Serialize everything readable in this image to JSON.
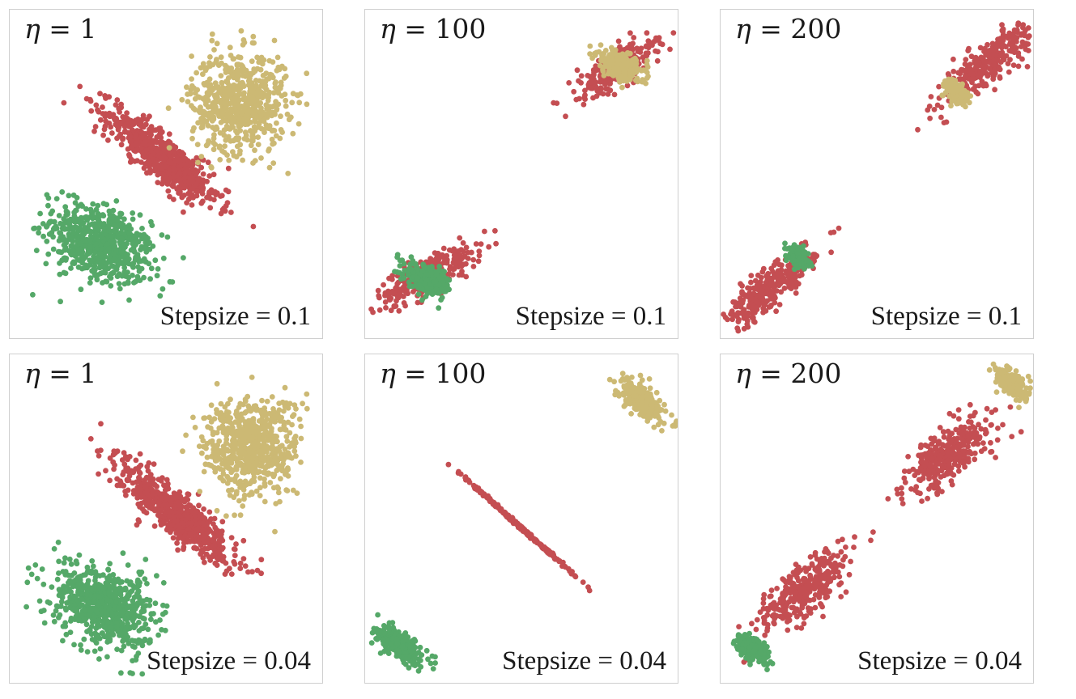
{
  "colors": {
    "green": "#55a868",
    "red": "#c44e52",
    "gold": "#ccb974",
    "border": "#cfcfcf"
  },
  "chart_data": [
    {
      "type": "scatter",
      "panel": "top-left",
      "eta_symbol": "η",
      "eta_equals": " = ",
      "eta_value": "1",
      "stepsize_prefix": "Stepsize = ",
      "stepsize_value": "0.1",
      "xlim": [
        0,
        1
      ],
      "ylim": [
        0,
        1
      ],
      "series": [
        {
          "name": "green",
          "color": "green",
          "center": [
            0.29,
            0.29
          ],
          "spread": [
            0.085,
            0.055
          ],
          "rotation": -25,
          "count": 650
        },
        {
          "name": "red",
          "color": "red",
          "center": [
            0.49,
            0.55
          ],
          "spread": [
            0.11,
            0.03
          ],
          "rotation": -38,
          "count": 650
        },
        {
          "name": "gold",
          "color": "gold",
          "center": [
            0.73,
            0.72
          ],
          "spread": [
            0.075,
            0.075
          ],
          "rotation": 0,
          "count": 650
        }
      ]
    },
    {
      "type": "scatter",
      "panel": "top-middle",
      "eta_symbol": "η",
      "eta_equals": " = ",
      "eta_value": "100",
      "stepsize_prefix": "Stepsize = ",
      "stepsize_value": "0.1",
      "xlim": [
        0,
        1
      ],
      "ylim": [
        0,
        1
      ],
      "series": [
        {
          "name": "red",
          "color": "red",
          "center": [
            0.2,
            0.2
          ],
          "spread": [
            0.09,
            0.025
          ],
          "rotation": 28,
          "count": 300
        },
        {
          "name": "red",
          "color": "red",
          "center": [
            0.8,
            0.82
          ],
          "spread": [
            0.07,
            0.025
          ],
          "rotation": 30,
          "count": 300
        },
        {
          "name": "gold",
          "color": "gold",
          "center": [
            0.81,
            0.83
          ],
          "spread": [
            0.04,
            0.018
          ],
          "rotation": -25,
          "count": 300
        },
        {
          "name": "green",
          "color": "green",
          "center": [
            0.2,
            0.18
          ],
          "spread": [
            0.04,
            0.018
          ],
          "rotation": -25,
          "count": 300
        }
      ]
    },
    {
      "type": "scatter",
      "panel": "top-right",
      "eta_symbol": "η",
      "eta_equals": " = ",
      "eta_value": "200",
      "stepsize_prefix": "Stepsize = ",
      "stepsize_value": "0.1",
      "xlim": [
        0,
        1
      ],
      "ylim": [
        0,
        1
      ],
      "series": [
        {
          "name": "red",
          "color": "red",
          "center": [
            0.85,
            0.84
          ],
          "spread": [
            0.09,
            0.025
          ],
          "rotation": 38,
          "count": 300
        },
        {
          "name": "gold",
          "color": "gold",
          "center": [
            0.75,
            0.75
          ],
          "spread": [
            0.02,
            0.013
          ],
          "rotation": -40,
          "count": 200
        },
        {
          "name": "red",
          "color": "red",
          "center": [
            0.15,
            0.15
          ],
          "spread": [
            0.09,
            0.025
          ],
          "rotation": 38,
          "count": 300
        },
        {
          "name": "green",
          "color": "green",
          "center": [
            0.25,
            0.25
          ],
          "spread": [
            0.02,
            0.013
          ],
          "rotation": -40,
          "count": 200
        }
      ]
    },
    {
      "type": "scatter",
      "panel": "bottom-left",
      "eta_symbol": "η",
      "eta_equals": " = ",
      "eta_value": "1",
      "stepsize_prefix": "Stepsize = ",
      "stepsize_value": "0.04",
      "xlim": [
        0,
        1
      ],
      "ylim": [
        0,
        1
      ],
      "series": [
        {
          "name": "green",
          "color": "green",
          "center": [
            0.3,
            0.24
          ],
          "spread": [
            0.085,
            0.055
          ],
          "rotation": -25,
          "count": 650
        },
        {
          "name": "red",
          "color": "red",
          "center": [
            0.53,
            0.52
          ],
          "spread": [
            0.11,
            0.03
          ],
          "rotation": -38,
          "count": 650
        },
        {
          "name": "gold",
          "color": "gold",
          "center": [
            0.77,
            0.72
          ],
          "spread": [
            0.075,
            0.075
          ],
          "rotation": 0,
          "count": 650
        }
      ]
    },
    {
      "type": "scatter",
      "panel": "bottom-middle",
      "eta_symbol": "η",
      "eta_equals": " = ",
      "eta_value": "100",
      "stepsize_prefix": "Stepsize = ",
      "stepsize_value": "0.04",
      "xlim": [
        0,
        1
      ],
      "ylim": [
        0,
        1
      ],
      "series": [
        {
          "name": "gold",
          "color": "gold",
          "center": [
            0.88,
            0.86
          ],
          "spread": [
            0.04,
            0.018
          ],
          "rotation": -35,
          "count": 300
        },
        {
          "name": "red",
          "color": "red",
          "center": [
            0.49,
            0.48
          ],
          "spread": [
            0.11,
            0.002
          ],
          "rotation": -40,
          "count": 300
        },
        {
          "name": "green",
          "color": "green",
          "center": [
            0.11,
            0.12
          ],
          "spread": [
            0.04,
            0.018
          ],
          "rotation": -35,
          "count": 300
        }
      ]
    },
    {
      "type": "scatter",
      "panel": "bottom-right",
      "eta_symbol": "η",
      "eta_equals": " = ",
      "eta_value": "200",
      "stepsize_prefix": "Stepsize = ",
      "stepsize_value": "0.04",
      "xlim": [
        0,
        1
      ],
      "ylim": [
        0,
        1
      ],
      "series": [
        {
          "name": "gold",
          "color": "gold",
          "center": [
            0.93,
            0.91
          ],
          "spread": [
            0.03,
            0.015
          ],
          "rotation": -35,
          "count": 200
        },
        {
          "name": "red",
          "color": "red",
          "center": [
            0.73,
            0.7
          ],
          "spread": [
            0.09,
            0.035
          ],
          "rotation": 38,
          "count": 320
        },
        {
          "name": "red",
          "color": "red",
          "center": [
            0.27,
            0.29
          ],
          "spread": [
            0.09,
            0.035
          ],
          "rotation": 38,
          "count": 320
        },
        {
          "name": "green",
          "color": "green",
          "center": [
            0.1,
            0.11
          ],
          "spread": [
            0.03,
            0.015
          ],
          "rotation": -35,
          "count": 200
        }
      ]
    }
  ]
}
